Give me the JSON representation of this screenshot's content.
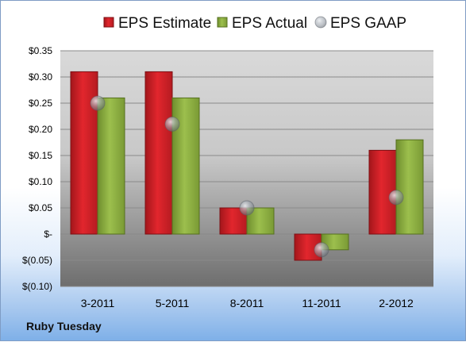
{
  "company": "Ruby Tuesday",
  "colors": {
    "estimate": "#d42027",
    "actual": "#8caf3f",
    "gaap": "#a7adb5"
  },
  "chart_data": {
    "type": "bar",
    "categories": [
      "3-2011",
      "5-2011",
      "8-2011",
      "11-2011",
      "2-2012"
    ],
    "series": [
      {
        "name": "EPS Estimate",
        "type": "bar",
        "values": [
          0.31,
          0.31,
          0.05,
          -0.05,
          0.16
        ]
      },
      {
        "name": "EPS Actual",
        "type": "bar",
        "values": [
          0.26,
          0.26,
          0.05,
          -0.03,
          0.18
        ]
      },
      {
        "name": "EPS GAAP",
        "type": "scatter",
        "values": [
          0.25,
          0.21,
          0.05,
          -0.03,
          0.07
        ]
      }
    ],
    "ylim": [
      -0.1,
      0.35
    ],
    "yticks": [
      0.35,
      0.3,
      0.25,
      0.2,
      0.15,
      0.1,
      0.05,
      0,
      -0.05,
      -0.1
    ],
    "ytick_labels": [
      "$0.35",
      "$0.30",
      "$0.25",
      "$0.20",
      "$0.15",
      "$0.10",
      "$0.05",
      "$-",
      "$(0.05)",
      "$(0.10)"
    ],
    "legend_position": "top",
    "grid": true
  }
}
